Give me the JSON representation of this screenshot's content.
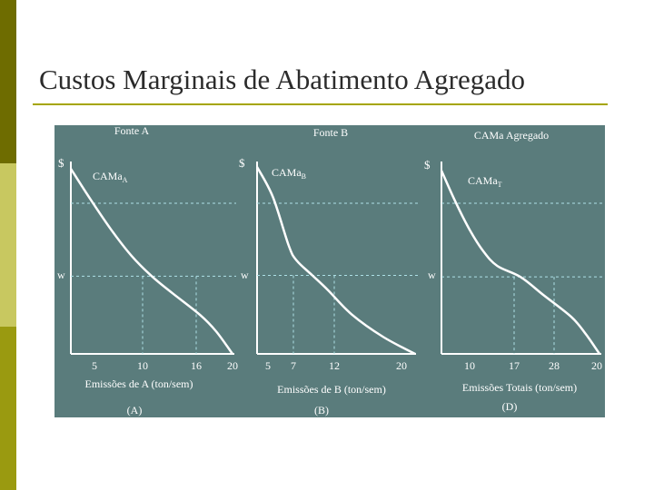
{
  "slide": {
    "title": "Custos Marginais de Abatimento Agregado"
  },
  "colors": {
    "left_bar_top": "#6e6c00",
    "left_bar_middle": "#c8c860",
    "left_bar_bottom": "#9a9a10",
    "title_rule": "#a5a500",
    "figure_background": "#5a7c7c",
    "curves": "#ffffff",
    "guide_lines": "#aee0e6"
  },
  "chart_data": [
    {
      "type": "line",
      "panel_title": "Fonte A",
      "series_label": "CAMa",
      "series_subscript": "A",
      "y_axis_symbol": "$",
      "w_label": "w",
      "xlabel": "Emissões de A (ton/sem)",
      "panel_letter": "(A)",
      "x_ticks": [
        "5",
        "10",
        "16",
        "20"
      ],
      "x": [
        0,
        2.5,
        5,
        7.5,
        10,
        12.5,
        16,
        18,
        20
      ],
      "y": [
        100,
        83,
        67,
        53,
        42,
        33,
        21,
        12,
        0
      ],
      "w_level": 42,
      "dashed_x": [
        10,
        16
      ],
      "xlim": [
        0,
        20
      ],
      "ylim": [
        0,
        100
      ]
    },
    {
      "type": "line",
      "panel_title": "Fonte B",
      "series_label": "CAMa",
      "series_subscript": "B",
      "y_axis_symbol": "$",
      "w_label": "w",
      "xlabel": "Emissões de B (ton/sem)",
      "panel_letter": "(B)",
      "x_ticks": [
        "5",
        "7",
        "12",
        "20"
      ],
      "x": [
        0,
        2,
        4,
        5,
        7,
        9,
        12,
        16,
        20
      ],
      "y": [
        100,
        84,
        58,
        50,
        42,
        34,
        21,
        9,
        0
      ],
      "w_level": 42,
      "dashed_x": [
        7,
        12
      ],
      "xlim": [
        0,
        20
      ],
      "ylim": [
        0,
        100
      ]
    },
    {
      "type": "line",
      "panel_title": "CAMa Agregado",
      "series_label": "CAMa",
      "series_subscript": "T",
      "y_axis_symbol": "$",
      "w_label": "w",
      "xlabel": "Emissões Totais (ton/sem)",
      "panel_letter": "(D)",
      "x_ticks": [
        "10",
        "17",
        "28",
        "20"
      ],
      "x": [
        0,
        3,
        6,
        9,
        12,
        17,
        22,
        28,
        31,
        34
      ],
      "y": [
        100,
        83,
        68,
        56,
        48,
        42,
        32,
        20,
        11,
        0
      ],
      "w_level": 42,
      "dashed_x": [
        17,
        28
      ],
      "xlim": [
        0,
        34
      ],
      "ylim": [
        0,
        100
      ]
    }
  ]
}
